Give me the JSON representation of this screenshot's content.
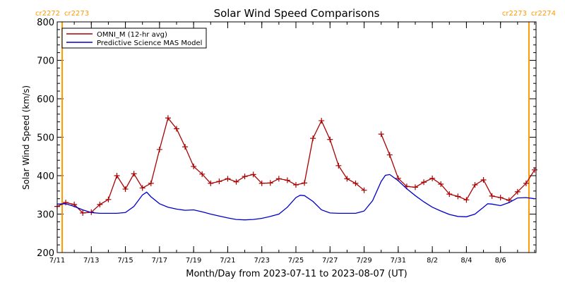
{
  "chart_data": {
    "type": "line",
    "title": "Solar Wind Speed Comparisons",
    "xlabel": "Month/Day from 2023-07-11 to 2023-08-07 (UT)",
    "ylabel": "Solar Wind Speed (km/s)",
    "xlim": [
      "2023-07-11T00:00",
      "2023-08-08T02:00"
    ],
    "ylim": [
      200,
      800
    ],
    "y_ticks": [
      200,
      300,
      400,
      500,
      600,
      700,
      800
    ],
    "x_tick_labels": [
      "7/11",
      "7/13",
      "7/15",
      "7/17",
      "7/19",
      "7/21",
      "7/23",
      "7/25",
      "7/27",
      "7/29",
      "7/31",
      "8/2",
      "8/4",
      "8/6"
    ],
    "x_tick_dates": [
      "2023-07-11",
      "2023-07-13",
      "2023-07-15",
      "2023-07-17",
      "2023-07-19",
      "2023-07-21",
      "2023-07-23",
      "2023-07-25",
      "2023-07-27",
      "2023-07-29",
      "2023-07-31",
      "2023-08-02",
      "2023-08-04",
      "2023-08-06"
    ],
    "legend_position": "top-left",
    "carrington_markers": [
      {
        "date": "2023-07-11T07:00",
        "left_label": "cr2272",
        "right_label": "cr2273",
        "color": "#ff9900"
      },
      {
        "date": "2023-08-07T16:00",
        "left_label": "cr2273",
        "right_label": "cr2274",
        "color": "#ff9900"
      }
    ],
    "series": [
      {
        "name": "OMNI_M (12-hr avg)",
        "color": "#aa0000",
        "marker": "plus",
        "segments": [
          [
            [
              "2023-07-11T00:00",
              320
            ],
            [
              "2023-07-11T12:00",
              330
            ],
            [
              "2023-07-12T00:00",
              325
            ],
            [
              "2023-07-12T12:00",
              303
            ],
            [
              "2023-07-13T00:00",
              305
            ],
            [
              "2023-07-13T12:00",
              325
            ],
            [
              "2023-07-14T00:00",
              338
            ],
            [
              "2023-07-14T12:00",
              400
            ],
            [
              "2023-07-15T00:00",
              365
            ],
            [
              "2023-07-15T12:00",
              405
            ],
            [
              "2023-07-16T00:00",
              368
            ],
            [
              "2023-07-16T12:00",
              380
            ],
            [
              "2023-07-17T00:00",
              468
            ],
            [
              "2023-07-17T12:00",
              550
            ],
            [
              "2023-07-18T00:00",
              522
            ],
            [
              "2023-07-18T12:00",
              475
            ],
            [
              "2023-07-19T00:00",
              424
            ],
            [
              "2023-07-19T12:00",
              404
            ],
            [
              "2023-07-20T00:00",
              380
            ],
            [
              "2023-07-20T12:00",
              385
            ],
            [
              "2023-07-21T00:00",
              392
            ],
            [
              "2023-07-21T12:00",
              384
            ],
            [
              "2023-07-22T00:00",
              398
            ],
            [
              "2023-07-22T12:00",
              403
            ],
            [
              "2023-07-23T00:00",
              380
            ],
            [
              "2023-07-23T12:00",
              381
            ],
            [
              "2023-07-24T00:00",
              392
            ],
            [
              "2023-07-24T12:00",
              388
            ],
            [
              "2023-07-25T00:00",
              376
            ],
            [
              "2023-07-25T12:00",
              381
            ],
            [
              "2023-07-26T00:00",
              497
            ],
            [
              "2023-07-26T12:00",
              543
            ],
            [
              "2023-07-27T00:00",
              494
            ],
            [
              "2023-07-27T12:00",
              426
            ],
            [
              "2023-07-28T00:00",
              392
            ],
            [
              "2023-07-28T12:00",
              380
            ],
            [
              "2023-07-29T00:00",
              362
            ]
          ],
          [
            [
              "2023-07-30T00:00",
              508
            ],
            [
              "2023-07-30T12:00",
              454
            ],
            [
              "2023-07-31T00:00",
              393
            ],
            [
              "2023-07-31T12:00",
              372
            ],
            [
              "2023-08-01T00:00",
              370
            ],
            [
              "2023-08-01T12:00",
              383
            ],
            [
              "2023-08-02T00:00",
              393
            ],
            [
              "2023-08-02T12:00",
              378
            ],
            [
              "2023-08-03T00:00",
              352
            ],
            [
              "2023-08-03T12:00",
              346
            ],
            [
              "2023-08-04T00:00",
              337
            ],
            [
              "2023-08-04T12:00",
              376
            ],
            [
              "2023-08-05T00:00",
              389
            ],
            [
              "2023-08-05T12:00",
              347
            ],
            [
              "2023-08-06T00:00",
              343
            ],
            [
              "2023-08-06T12:00",
              336
            ],
            [
              "2023-08-07T00:00",
              358
            ],
            [
              "2023-08-07T12:00",
              380
            ],
            [
              "2023-08-08T00:00",
              415
            ]
          ]
        ]
      },
      {
        "name": "Predictive Science MAS Model",
        "color": "#0000cc",
        "marker": "none",
        "segments": [
          [
            [
              "2023-07-11T00:00",
              326
            ],
            [
              "2023-07-11T12:00",
              327
            ],
            [
              "2023-07-12T00:00",
              320
            ],
            [
              "2023-07-12T12:00",
              311
            ],
            [
              "2023-07-13T00:00",
              304
            ],
            [
              "2023-07-13T12:00",
              302
            ],
            [
              "2023-07-14T00:00",
              302
            ],
            [
              "2023-07-14T12:00",
              302
            ],
            [
              "2023-07-15T00:00",
              304
            ],
            [
              "2023-07-15T12:00",
              320
            ],
            [
              "2023-07-16T00:00",
              350
            ],
            [
              "2023-07-16T06:00",
              357
            ],
            [
              "2023-07-16T12:00",
              345
            ],
            [
              "2023-07-17T00:00",
              327
            ],
            [
              "2023-07-17T12:00",
              318
            ],
            [
              "2023-07-18T00:00",
              313
            ],
            [
              "2023-07-18T12:00",
              310
            ],
            [
              "2023-07-19T00:00",
              311
            ],
            [
              "2023-07-19T12:00",
              306
            ],
            [
              "2023-07-20T00:00",
              300
            ],
            [
              "2023-07-20T12:00",
              295
            ],
            [
              "2023-07-21T00:00",
              290
            ],
            [
              "2023-07-21T12:00",
              286
            ],
            [
              "2023-07-22T00:00",
              285
            ],
            [
              "2023-07-22T12:00",
              286
            ],
            [
              "2023-07-23T00:00",
              289
            ],
            [
              "2023-07-23T12:00",
              294
            ],
            [
              "2023-07-24T00:00",
              300
            ],
            [
              "2023-07-24T12:00",
              318
            ],
            [
              "2023-07-25T00:00",
              343
            ],
            [
              "2023-07-25T06:00",
              349
            ],
            [
              "2023-07-25T12:00",
              348
            ],
            [
              "2023-07-26T00:00",
              333
            ],
            [
              "2023-07-26T12:00",
              311
            ],
            [
              "2023-07-27T00:00",
              303
            ],
            [
              "2023-07-27T12:00",
              302
            ],
            [
              "2023-07-28T00:00",
              302
            ],
            [
              "2023-07-28T12:00",
              302
            ],
            [
              "2023-07-29T00:00",
              308
            ],
            [
              "2023-07-29T12:00",
              335
            ],
            [
              "2023-07-30T00:00",
              385
            ],
            [
              "2023-07-30T06:00",
              401
            ],
            [
              "2023-07-30T12:00",
              403
            ],
            [
              "2023-07-31T00:00",
              387
            ],
            [
              "2023-07-31T12:00",
              366
            ],
            [
              "2023-08-01T00:00",
              348
            ],
            [
              "2023-08-01T12:00",
              332
            ],
            [
              "2023-08-02T00:00",
              318
            ],
            [
              "2023-08-02T12:00",
              308
            ],
            [
              "2023-08-03T00:00",
              299
            ],
            [
              "2023-08-03T12:00",
              294
            ],
            [
              "2023-08-04T00:00",
              293
            ],
            [
              "2023-08-04T12:00",
              300
            ],
            [
              "2023-08-05T00:00",
              318
            ],
            [
              "2023-08-05T06:00",
              327
            ],
            [
              "2023-08-05T12:00",
              326
            ],
            [
              "2023-08-06T00:00",
              322
            ],
            [
              "2023-08-06T12:00",
              330
            ],
            [
              "2023-08-07T00:00",
              342
            ],
            [
              "2023-08-07T12:00",
              343
            ],
            [
              "2023-08-08T00:00",
              340
            ]
          ]
        ]
      }
    ]
  }
}
